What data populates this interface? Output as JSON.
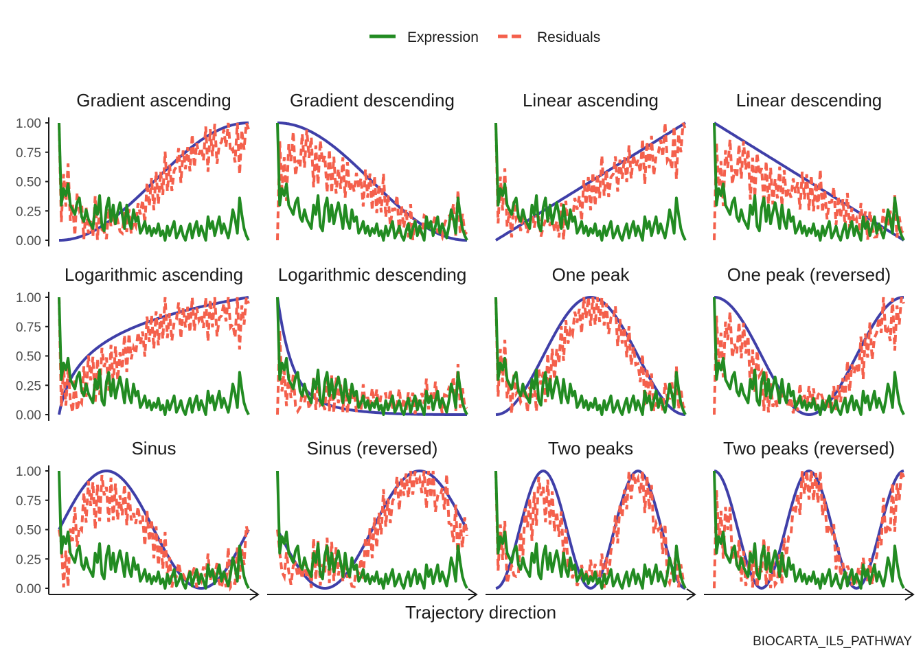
{
  "chart_data": {
    "type": "line",
    "layout": "small-multiples 3x4",
    "legend": {
      "placement": "top-center",
      "entries": [
        {
          "label": "Expression",
          "color": "#228B22",
          "style": "solid"
        },
        {
          "label": "Residuals",
          "color": "#F4604C",
          "style": "dashed"
        }
      ]
    },
    "xlabel": "Trajectory direction",
    "caption": "BIOCARTA_IL5_PATHWAY",
    "x_axis": {
      "ticks": "none",
      "arrow": true
    },
    "y_axis": {
      "ylim": [
        0,
        1
      ],
      "ticks": [
        "1.00",
        "0.75",
        "0.50",
        "0.25",
        "0.00"
      ]
    },
    "reference_color": "#3F3FA8",
    "grid": false,
    "panels": [
      {
        "title": "Gradient ascending",
        "pattern": "gradient_ascending"
      },
      {
        "title": "Gradient descending",
        "pattern": "gradient_descending"
      },
      {
        "title": "Linear ascending",
        "pattern": "linear_ascending"
      },
      {
        "title": "Linear descending",
        "pattern": "linear_descending"
      },
      {
        "title": "Logarithmic ascending",
        "pattern": "log_ascending"
      },
      {
        "title": "Logarithmic descending",
        "pattern": "log_descending"
      },
      {
        "title": "One peak",
        "pattern": "one_peak"
      },
      {
        "title": "One peak (reversed)",
        "pattern": "one_peak_reversed"
      },
      {
        "title": "Sinus",
        "pattern": "sinus"
      },
      {
        "title": "Sinus (reversed)",
        "pattern": "sinus_reversed"
      },
      {
        "title": "Two peaks",
        "pattern": "two_peaks"
      },
      {
        "title": "Two peaks (reversed)",
        "pattern": "two_peaks_reversed"
      }
    ],
    "expression": [
      1.0,
      0.3,
      0.44,
      0.38,
      0.48,
      0.3,
      0.26,
      0.22,
      0.32,
      0.36,
      0.2,
      0.16,
      0.26,
      0.18,
      0.14,
      0.1,
      0.3,
      0.22,
      0.38,
      0.12,
      0.08,
      0.28,
      0.36,
      0.16,
      0.3,
      0.14,
      0.24,
      0.32,
      0.22,
      0.1,
      0.3,
      0.16,
      0.1,
      0.26,
      0.16,
      0.2,
      0.06,
      0.1,
      0.16,
      0.06,
      0.12,
      0.04,
      0.1,
      0.06,
      0.14,
      0.04,
      0.08,
      0.0,
      0.12,
      0.04,
      0.1,
      0.16,
      0.02,
      0.06,
      0.12,
      0.04,
      0.0,
      0.08,
      0.14,
      0.02,
      0.1,
      0.16,
      0.04,
      0.12,
      0.06,
      0.0,
      0.2,
      0.1,
      0.16,
      0.04,
      0.12,
      0.2,
      0.06,
      0.14,
      0.08,
      0.02,
      0.12,
      0.26,
      0.18,
      0.06,
      0.36,
      0.22,
      0.1,
      0.04,
      0.0
    ],
    "residual_noise": [
      0.0,
      0.16,
      -0.14,
      0.1,
      -0.2,
      0.14,
      -0.06,
      0.18,
      -0.12,
      0.08,
      -0.16,
      0.12,
      -0.08,
      0.2,
      -0.1,
      0.06,
      -0.18,
      0.14,
      -0.04,
      0.1,
      -0.14,
      0.16,
      -0.08,
      0.12,
      -0.12,
      0.06,
      -0.16,
      0.18,
      -0.1,
      0.08,
      -0.06,
      0.14,
      -0.18,
      0.1,
      -0.08,
      0.16,
      -0.12,
      0.04,
      -0.14,
      0.12,
      -0.06,
      0.1,
      -0.16,
      0.14,
      -0.1,
      0.08,
      -0.12,
      0.18,
      -0.08,
      0.06,
      -0.14,
      0.1,
      -0.04,
      0.16,
      -0.12,
      0.08,
      -0.16,
      0.12,
      -0.06,
      0.14,
      -0.1,
      0.18,
      -0.08,
      0.06,
      -0.14,
      0.1,
      -0.12,
      0.16,
      -0.04,
      0.12,
      -0.18,
      0.08,
      -0.06,
      0.14,
      -0.1,
      0.2,
      -0.12,
      0.06,
      -0.16,
      0.1,
      -0.08,
      0.18,
      -0.14,
      0.12,
      -0.06
    ]
  }
}
